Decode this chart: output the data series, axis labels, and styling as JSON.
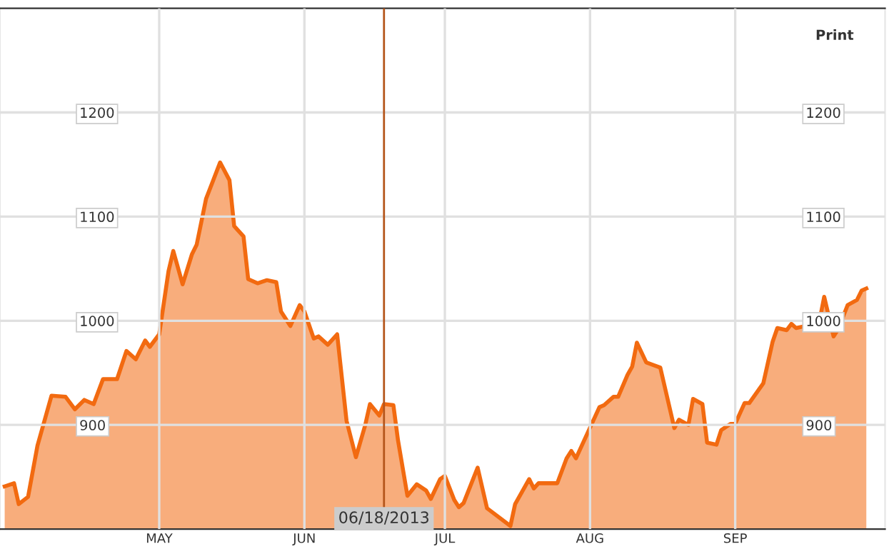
{
  "chart_data": {
    "type": "area",
    "x": [
      "2013-03-29",
      "2013-03-31",
      "2013-04-01",
      "2013-04-03",
      "2013-04-05",
      "2013-04-08",
      "2013-04-11",
      "2013-04-13",
      "2013-04-15",
      "2013-04-17",
      "2013-04-19",
      "2013-04-22",
      "2013-04-24",
      "2013-04-26",
      "2013-04-28",
      "2013-04-29",
      "2013-05-01",
      "2013-05-03",
      "2013-05-04",
      "2013-05-06",
      "2013-05-08",
      "2013-05-09",
      "2013-05-11",
      "2013-05-14",
      "2013-05-16",
      "2013-05-17",
      "2013-05-19",
      "2013-05-20",
      "2013-05-22",
      "2013-05-24",
      "2013-05-26",
      "2013-05-27",
      "2013-05-29",
      "2013-05-31",
      "2013-06-01",
      "2013-06-03",
      "2013-06-04",
      "2013-06-06",
      "2013-06-08",
      "2013-06-10",
      "2013-06-12",
      "2013-06-14",
      "2013-06-15",
      "2013-06-17",
      "2013-06-18",
      "2013-06-20",
      "2013-06-21",
      "2013-06-23",
      "2013-06-25",
      "2013-06-27",
      "2013-06-28",
      "2013-06-30",
      "2013-07-01",
      "2013-07-03",
      "2013-07-04",
      "2013-07-05",
      "2013-07-08",
      "2013-07-10",
      "2013-07-15",
      "2013-07-16",
      "2013-07-19",
      "2013-07-20",
      "2013-07-21",
      "2013-07-25",
      "2013-07-27",
      "2013-07-28",
      "2013-07-29",
      "2013-08-03",
      "2013-08-04",
      "2013-08-06",
      "2013-08-07",
      "2013-08-09",
      "2013-08-10",
      "2013-08-11",
      "2013-08-13",
      "2013-08-16",
      "2013-08-19",
      "2013-08-20",
      "2013-08-22",
      "2013-08-23",
      "2013-08-25",
      "2013-08-26",
      "2013-08-28",
      "2013-08-29",
      "2013-08-31",
      "2013-09-01",
      "2013-09-03",
      "2013-09-04",
      "2013-09-07",
      "2013-09-09",
      "2013-09-10",
      "2013-09-12",
      "2013-09-13",
      "2013-09-14",
      "2013-09-16",
      "2013-09-18",
      "2013-09-19",
      "2013-09-20",
      "2013-09-22",
      "2013-09-23",
      "2013-09-25",
      "2013-09-27",
      "2013-09-28",
      "2013-09-29"
    ],
    "series": [
      {
        "color": "#f26a10",
        "values": [
          841,
          844,
          824,
          831,
          880,
          928,
          927,
          915,
          924,
          920,
          944,
          944,
          971,
          963,
          981,
          975,
          987,
          1048,
          1067,
          1035,
          1064,
          1073,
          1117,
          1152,
          1135,
          1091,
          1081,
          1040,
          1036,
          1039,
          1037,
          1009,
          995,
          1015,
          1009,
          983,
          985,
          977,
          987,
          904,
          869,
          900,
          920,
          909,
          920,
          919,
          885,
          832,
          843,
          837,
          829,
          848,
          851,
          828,
          821,
          825,
          859,
          820,
          803,
          824,
          848,
          839,
          844,
          844,
          868,
          875,
          868,
          917,
          919,
          927,
          927,
          948,
          956,
          979,
          960,
          955,
          897,
          905,
          900,
          925,
          920,
          883,
          881,
          895,
          901,
          901,
          921,
          921,
          940,
          980,
          993,
          991,
          997,
          993,
          995,
          1000,
          1000,
          1023,
          985,
          992,
          1015,
          1020,
          1029,
          1031
        ]
      }
    ],
    "xlim": [
      "2013-03-28",
      "2013-10-03"
    ],
    "xticks": [
      {
        "value": "2013-05-01",
        "label": "MAY"
      },
      {
        "value": "2013-06-01",
        "label": "JUN"
      },
      {
        "value": "2013-07-01",
        "label": "JUL"
      },
      {
        "value": "2013-08-01",
        "label": "AUG"
      },
      {
        "value": "2013-09-01",
        "label": "SEP"
      }
    ],
    "ylim": [
      800,
      1300
    ],
    "yticks": [
      900,
      1000,
      1100,
      1200
    ],
    "y2lim": [
      800,
      1300
    ],
    "y2ticks": [
      900,
      1000,
      1100,
      1200
    ],
    "grid": true,
    "ref_lines": [
      {
        "axis": "x",
        "value": "2013-06-18",
        "label": "06/18/2013",
        "color": "#b5561c"
      }
    ],
    "annotations": [
      "Print"
    ]
  }
}
